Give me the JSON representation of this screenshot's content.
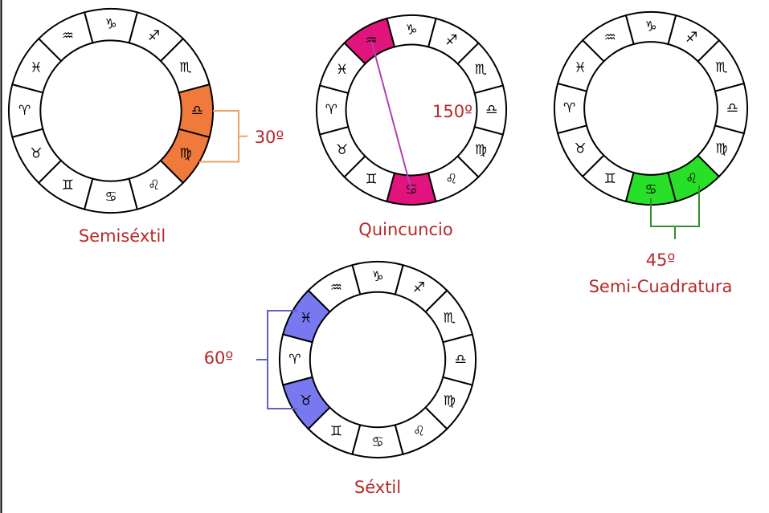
{
  "signs": [
    "♈",
    "♉",
    "♊",
    "♋",
    "♌",
    "♍",
    "♎",
    "♏",
    "♐",
    "♑",
    "♒",
    "♓"
  ],
  "diagrams": [
    {
      "angle": "30º",
      "label": "Semiséxtil",
      "highlight": [
        6,
        5
      ],
      "color": "#f07a3c",
      "line": "#f0a060"
    },
    {
      "angle": "150º",
      "label": "Quincuncio",
      "highlight": [
        10,
        3
      ],
      "color": "#e0147c",
      "line": "#b040b0"
    },
    {
      "angle": "45º",
      "label": "Semi-Cuadratura",
      "highlight": [
        3,
        4
      ],
      "color": "#28e028",
      "line": "#309030"
    },
    {
      "angle": "60º",
      "label": "Séxtil",
      "highlight": [
        11,
        1
      ],
      "color": "#7878f0",
      "line": "#6060c0"
    }
  ]
}
